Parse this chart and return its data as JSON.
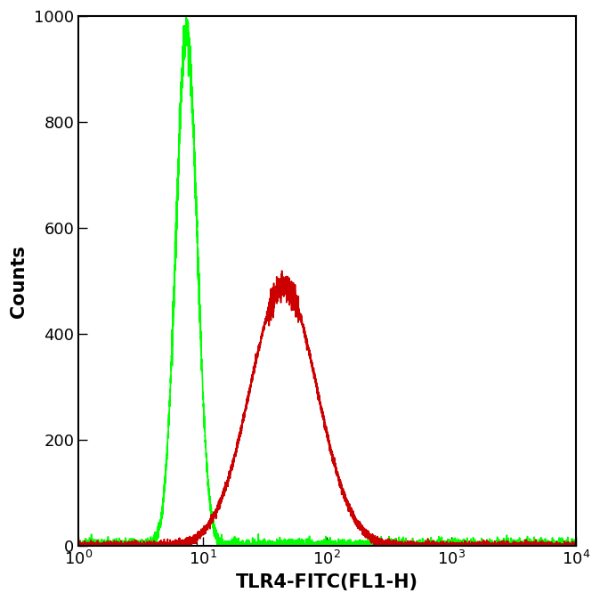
{
  "xlabel": "TLR4-FITC(FL1-H)",
  "ylabel": "Counts",
  "xlim_log": [
    0,
    4
  ],
  "ylim": [
    0,
    1000
  ],
  "yticks": [
    0,
    200,
    400,
    600,
    800,
    1000
  ],
  "background_color": "#ffffff",
  "green_color": "#00ff00",
  "red_color": "#cc0000",
  "green_peak_log": 0.87,
  "green_peak_height": 970,
  "green_sigma_log": 0.085,
  "red_peak_log": 1.65,
  "red_peak_height": 490,
  "red_sigma_log": 0.27,
  "line_width": 1.2,
  "xlabel_fontsize": 15,
  "ylabel_fontsize": 15,
  "tick_fontsize": 13,
  "fig_width": 6.74,
  "fig_height": 6.75,
  "dpi": 100
}
